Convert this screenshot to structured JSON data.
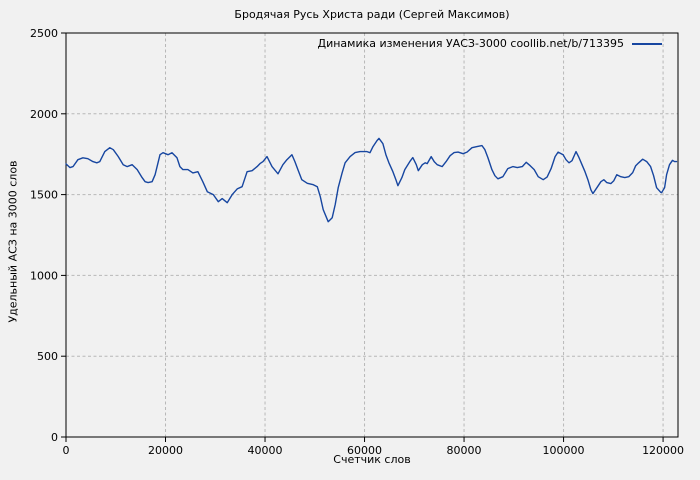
{
  "page": {
    "background": "#f1f1f1"
  },
  "chart_data": {
    "type": "line",
    "title": "Бродячая Русь Христа ради (Сергей Максимов)",
    "xlabel": "Счетчик слов",
    "ylabel": "Удельный АСЗ на 3000 слов",
    "xlim": [
      0,
      123000
    ],
    "ylim": [
      0,
      2500
    ],
    "x_ticks": [
      0,
      20000,
      40000,
      60000,
      80000,
      100000,
      120000
    ],
    "y_ticks": [
      0,
      500,
      1000,
      1500,
      2000,
      2500
    ],
    "grid": true,
    "legend_position": "top-right-inside",
    "colors": {
      "line": "#1746a0",
      "grid": "#b8b8b8",
      "border": "#000000",
      "text": "#000000",
      "background": "#f1f1f1"
    },
    "series": [
      {
        "name": "Динамика изменения УАСЗ-3000 coollib.net/b/713395",
        "color": "#1746a0",
        "points": [
          [
            0,
            1690
          ],
          [
            800,
            1667
          ],
          [
            1400,
            1673
          ],
          [
            2400,
            1716
          ],
          [
            3400,
            1728
          ],
          [
            4400,
            1722
          ],
          [
            5400,
            1704
          ],
          [
            6200,
            1697
          ],
          [
            6800,
            1704
          ],
          [
            7800,
            1766
          ],
          [
            8800,
            1790
          ],
          [
            9500,
            1778
          ],
          [
            10500,
            1736
          ],
          [
            11500,
            1685
          ],
          [
            12300,
            1673
          ],
          [
            13300,
            1685
          ],
          [
            14300,
            1655
          ],
          [
            15300,
            1605
          ],
          [
            15900,
            1580
          ],
          [
            16500,
            1574
          ],
          [
            17300,
            1580
          ],
          [
            17900,
            1623
          ],
          [
            18900,
            1747
          ],
          [
            19500,
            1759
          ],
          [
            20500,
            1747
          ],
          [
            21300,
            1759
          ],
          [
            22300,
            1728
          ],
          [
            22900,
            1673
          ],
          [
            23500,
            1655
          ],
          [
            24500,
            1655
          ],
          [
            25500,
            1634
          ],
          [
            26500,
            1642
          ],
          [
            27500,
            1580
          ],
          [
            28400,
            1518
          ],
          [
            29600,
            1500
          ],
          [
            30600,
            1456
          ],
          [
            31400,
            1475
          ],
          [
            32400,
            1450
          ],
          [
            33400,
            1500
          ],
          [
            34400,
            1535
          ],
          [
            35400,
            1549
          ],
          [
            36400,
            1642
          ],
          [
            37400,
            1648
          ],
          [
            38400,
            1673
          ],
          [
            39000,
            1692
          ],
          [
            39600,
            1704
          ],
          [
            40400,
            1735
          ],
          [
            41400,
            1673
          ],
          [
            42600,
            1629
          ],
          [
            43600,
            1685
          ],
          [
            44400,
            1716
          ],
          [
            45400,
            1747
          ],
          [
            46000,
            1704
          ],
          [
            46600,
            1655
          ],
          [
            47400,
            1592
          ],
          [
            48500,
            1570
          ],
          [
            49700,
            1561
          ],
          [
            50500,
            1549
          ],
          [
            51100,
            1487
          ],
          [
            51700,
            1407
          ],
          [
            52700,
            1332
          ],
          [
            53500,
            1357
          ],
          [
            54100,
            1438
          ],
          [
            54700,
            1543
          ],
          [
            55500,
            1634
          ],
          [
            56100,
            1697
          ],
          [
            57100,
            1735
          ],
          [
            58100,
            1760
          ],
          [
            59100,
            1766
          ],
          [
            60500,
            1766
          ],
          [
            61100,
            1759
          ],
          [
            61700,
            1797
          ],
          [
            62500,
            1834
          ],
          [
            62900,
            1848
          ],
          [
            63700,
            1815
          ],
          [
            64300,
            1747
          ],
          [
            64900,
            1697
          ],
          [
            65700,
            1642
          ],
          [
            66300,
            1592
          ],
          [
            66700,
            1555
          ],
          [
            67500,
            1605
          ],
          [
            68100,
            1655
          ],
          [
            69100,
            1704
          ],
          [
            69700,
            1729
          ],
          [
            70400,
            1685
          ],
          [
            70800,
            1648
          ],
          [
            71600,
            1685
          ],
          [
            72200,
            1697
          ],
          [
            72600,
            1692
          ],
          [
            73400,
            1735
          ],
          [
            74000,
            1704
          ],
          [
            74600,
            1685
          ],
          [
            75600,
            1673
          ],
          [
            76400,
            1704
          ],
          [
            77200,
            1741
          ],
          [
            78000,
            1760
          ],
          [
            78800,
            1763
          ],
          [
            79800,
            1753
          ],
          [
            80600,
            1763
          ],
          [
            81600,
            1790
          ],
          [
            82600,
            1797
          ],
          [
            83600,
            1803
          ],
          [
            84200,
            1778
          ],
          [
            84800,
            1729
          ],
          [
            85600,
            1655
          ],
          [
            86200,
            1617
          ],
          [
            86800,
            1598
          ],
          [
            87800,
            1611
          ],
          [
            88800,
            1661
          ],
          [
            89800,
            1673
          ],
          [
            90700,
            1667
          ],
          [
            91700,
            1673
          ],
          [
            92500,
            1700
          ],
          [
            93300,
            1679
          ],
          [
            94100,
            1655
          ],
          [
            94900,
            1611
          ],
          [
            95900,
            1592
          ],
          [
            96700,
            1608
          ],
          [
            97500,
            1661
          ],
          [
            98300,
            1735
          ],
          [
            98900,
            1763
          ],
          [
            99900,
            1747
          ],
          [
            100500,
            1716
          ],
          [
            101100,
            1697
          ],
          [
            101700,
            1710
          ],
          [
            102500,
            1766
          ],
          [
            103100,
            1729
          ],
          [
            103700,
            1685
          ],
          [
            104300,
            1642
          ],
          [
            104900,
            1592
          ],
          [
            105500,
            1530
          ],
          [
            105900,
            1506
          ],
          [
            106700,
            1543
          ],
          [
            107500,
            1580
          ],
          [
            108100,
            1592
          ],
          [
            108700,
            1574
          ],
          [
            109500,
            1568
          ],
          [
            110100,
            1586
          ],
          [
            110700,
            1623
          ],
          [
            111500,
            1611
          ],
          [
            112300,
            1605
          ],
          [
            113100,
            1611
          ],
          [
            113900,
            1636
          ],
          [
            114500,
            1679
          ],
          [
            115100,
            1697
          ],
          [
            115900,
            1719
          ],
          [
            116700,
            1704
          ],
          [
            117500,
            1673
          ],
          [
            118100,
            1617
          ],
          [
            118700,
            1543
          ],
          [
            119500,
            1515
          ],
          [
            119700,
            1512
          ],
          [
            120300,
            1543
          ],
          [
            120700,
            1623
          ],
          [
            121300,
            1685
          ],
          [
            121900,
            1712
          ],
          [
            122300,
            1704
          ],
          [
            122700,
            1704
          ]
        ]
      }
    ]
  }
}
